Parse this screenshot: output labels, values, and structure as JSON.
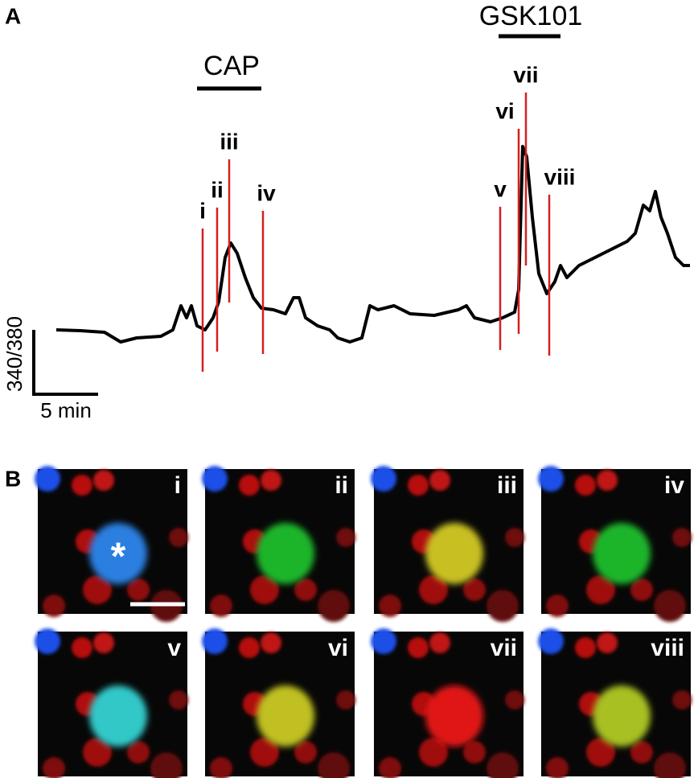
{
  "panel_a": {
    "label": "A",
    "cap": "CAP",
    "gsk101": "GSK101",
    "markers": [
      "i",
      "ii",
      "iii",
      "iv",
      "v",
      "vi",
      "vii",
      "viii"
    ],
    "y_scale": "340/380",
    "x_scale": "5 min"
  },
  "panel_b": {
    "label": "B",
    "images": [
      "i",
      "ii",
      "iii",
      "iv",
      "v",
      "vi",
      "vii",
      "viii"
    ],
    "asterisk": "*"
  }
}
